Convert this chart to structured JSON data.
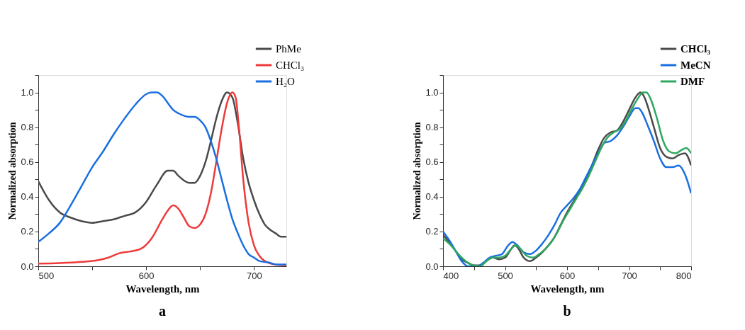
{
  "chart_data": [
    {
      "type": "line",
      "xlabel": "Wavelength, nm",
      "ylabel": "Normalized absorption",
      "annotations": [
        "a"
      ],
      "legend": "top right",
      "grid": false,
      "marker": "none",
      "line_style": "solid",
      "xlim": [
        500,
        730
      ],
      "xticks": [
        500,
        {
          "value": 550,
          "label": null
        },
        600,
        {
          "value": 650,
          "label": null
        },
        700
      ],
      "ylim": [
        0,
        1.1
      ],
      "yticks": [
        {
          "value": 0,
          "label": "0.0"
        },
        {
          "value": 0.1,
          "label": null
        },
        0.2,
        {
          "value": 0.3,
          "label": null
        },
        0.4,
        {
          "value": 0.5,
          "label": null
        },
        0.6,
        {
          "value": 0.7,
          "label": null
        },
        0.8,
        {
          "value": 0.9,
          "label": null
        },
        {
          "value": 1,
          "label": "1.0"
        },
        {
          "value": 1.1,
          "label": null
        }
      ],
      "series": [
        {
          "name": "PhMe",
          "color": "#4a4a4a",
          "x": [
            500,
            510,
            520,
            530,
            540,
            550,
            560,
            570,
            580,
            590,
            600,
            610,
            620,
            625,
            630,
            640,
            645,
            650,
            655,
            660,
            665,
            670,
            675,
            680,
            685,
            690,
            695,
            700,
            705,
            710,
            715,
            720,
            725,
            730
          ],
          "values": [
            0.49,
            0.38,
            0.31,
            0.28,
            0.26,
            0.25,
            0.26,
            0.27,
            0.29,
            0.31,
            0.37,
            0.47,
            0.55,
            0.55,
            0.52,
            0.48,
            0.48,
            0.52,
            0.6,
            0.72,
            0.85,
            0.95,
            1.0,
            0.97,
            0.82,
            0.62,
            0.48,
            0.38,
            0.3,
            0.24,
            0.21,
            0.19,
            0.17,
            0.17
          ]
        },
        {
          "name": "CHCl₃",
          "color": "#ee3a3a",
          "x": [
            500,
            520,
            540,
            555,
            565,
            575,
            585,
            595,
            605,
            615,
            620,
            625,
            630,
            635,
            640,
            645,
            650,
            655,
            660,
            665,
            670,
            675,
            680,
            683,
            686,
            690,
            695,
            700,
            705,
            710,
            720,
            730
          ],
          "values": [
            0.015,
            0.018,
            0.025,
            0.035,
            0.05,
            0.075,
            0.085,
            0.1,
            0.16,
            0.27,
            0.32,
            0.35,
            0.33,
            0.28,
            0.23,
            0.22,
            0.24,
            0.3,
            0.42,
            0.6,
            0.79,
            0.94,
            1.0,
            0.97,
            0.8,
            0.5,
            0.25,
            0.12,
            0.06,
            0.03,
            0.01,
            0.005
          ]
        },
        {
          "name": "H₂O",
          "color": "#1a6fe0",
          "x": [
            500,
            510,
            520,
            530,
            540,
            550,
            560,
            570,
            580,
            590,
            600,
            605,
            610,
            615,
            620,
            625,
            630,
            640,
            645,
            650,
            655,
            660,
            665,
            670,
            675,
            680,
            685,
            690,
            695,
            700,
            705,
            715,
            720,
            730
          ],
          "values": [
            0.14,
            0.19,
            0.25,
            0.35,
            0.46,
            0.57,
            0.66,
            0.76,
            0.85,
            0.93,
            0.99,
            1.0,
            1.0,
            0.98,
            0.94,
            0.9,
            0.88,
            0.86,
            0.86,
            0.84,
            0.8,
            0.72,
            0.62,
            0.5,
            0.38,
            0.27,
            0.19,
            0.12,
            0.07,
            0.05,
            0.03,
            0.02,
            0.01,
            0.01
          ]
        }
      ]
    },
    {
      "type": "line",
      "xlabel": "Wavelength, nm",
      "ylabel": "Normalized absorption",
      "annotations": [
        "b"
      ],
      "legend": "top right",
      "grid": false,
      "marker": "none",
      "line_style": "solid",
      "xlim": [
        400,
        800
      ],
      "xticks": [
        400,
        {
          "value": 450,
          "label": null
        },
        500,
        {
          "value": 550,
          "label": null
        },
        600,
        {
          "value": 650,
          "label": null
        },
        700,
        {
          "value": 750,
          "label": null
        },
        800
      ],
      "ylim": [
        0,
        1.1
      ],
      "yticks": [
        {
          "value": 0,
          "label": "0.0"
        },
        {
          "value": 0.1,
          "label": null
        },
        0.2,
        {
          "value": 0.3,
          "label": null
        },
        0.4,
        {
          "value": 0.5,
          "label": null
        },
        0.6,
        {
          "value": 0.7,
          "label": null
        },
        0.8,
        {
          "value": 0.9,
          "label": null
        },
        {
          "value": 1,
          "label": "1.0"
        },
        {
          "value": 1.1,
          "label": null
        }
      ],
      "series": [
        {
          "name": "CHCl₃",
          "color": "#4a4a4a",
          "x": [
            400,
            410,
            420,
            430,
            440,
            450,
            460,
            470,
            480,
            490,
            500,
            510,
            515,
            520,
            530,
            540,
            550,
            560,
            570,
            580,
            590,
            600,
            610,
            620,
            630,
            640,
            650,
            660,
            670,
            680,
            690,
            700,
            710,
            718,
            725,
            730,
            740,
            750,
            760,
            770,
            780,
            790,
            800
          ],
          "values": [
            0.18,
            0.14,
            0.09,
            0.04,
            0.02,
            0.005,
            0.005,
            0.03,
            0.05,
            0.04,
            0.05,
            0.1,
            0.12,
            0.11,
            0.05,
            0.03,
            0.05,
            0.08,
            0.12,
            0.17,
            0.24,
            0.31,
            0.37,
            0.43,
            0.5,
            0.58,
            0.67,
            0.74,
            0.77,
            0.78,
            0.83,
            0.9,
            0.97,
            1.0,
            0.97,
            0.92,
            0.8,
            0.68,
            0.63,
            0.62,
            0.64,
            0.65,
            0.58
          ]
        },
        {
          "name": "MeCN",
          "color": "#1a6fe0",
          "x": [
            400,
            410,
            420,
            430,
            440,
            450,
            455,
            465,
            475,
            485,
            495,
            505,
            512,
            520,
            530,
            540,
            550,
            560,
            570,
            580,
            590,
            600,
            610,
            620,
            630,
            640,
            650,
            660,
            670,
            680,
            690,
            700,
            710,
            715,
            720,
            730,
            740,
            750,
            760,
            770,
            780,
            790,
            800
          ],
          "values": [
            0.2,
            0.15,
            0.09,
            0.03,
            0.0,
            0.0,
            0.0,
            0.02,
            0.05,
            0.06,
            0.07,
            0.12,
            0.14,
            0.12,
            0.08,
            0.07,
            0.09,
            0.13,
            0.18,
            0.24,
            0.31,
            0.35,
            0.39,
            0.44,
            0.51,
            0.58,
            0.65,
            0.71,
            0.72,
            0.75,
            0.8,
            0.86,
            0.91,
            0.91,
            0.89,
            0.81,
            0.72,
            0.62,
            0.57,
            0.57,
            0.58,
            0.53,
            0.42
          ]
        },
        {
          "name": "DMF",
          "color": "#2ea860",
          "x": [
            400,
            410,
            420,
            430,
            440,
            450,
            460,
            470,
            480,
            490,
            500,
            510,
            517,
            525,
            535,
            545,
            555,
            565,
            575,
            585,
            595,
            605,
            615,
            625,
            635,
            645,
            655,
            665,
            675,
            685,
            695,
            705,
            715,
            722,
            728,
            735,
            745,
            755,
            765,
            775,
            785,
            792,
            800
          ],
          "values": [
            0.16,
            0.13,
            0.09,
            0.05,
            0.02,
            0.005,
            0.0,
            0.03,
            0.05,
            0.05,
            0.06,
            0.1,
            0.12,
            0.1,
            0.06,
            0.05,
            0.07,
            0.1,
            0.14,
            0.2,
            0.27,
            0.33,
            0.39,
            0.45,
            0.52,
            0.6,
            0.68,
            0.74,
            0.77,
            0.79,
            0.84,
            0.91,
            0.97,
            1.0,
            1.0,
            0.96,
            0.85,
            0.72,
            0.66,
            0.65,
            0.67,
            0.68,
            0.65
          ]
        }
      ]
    }
  ]
}
